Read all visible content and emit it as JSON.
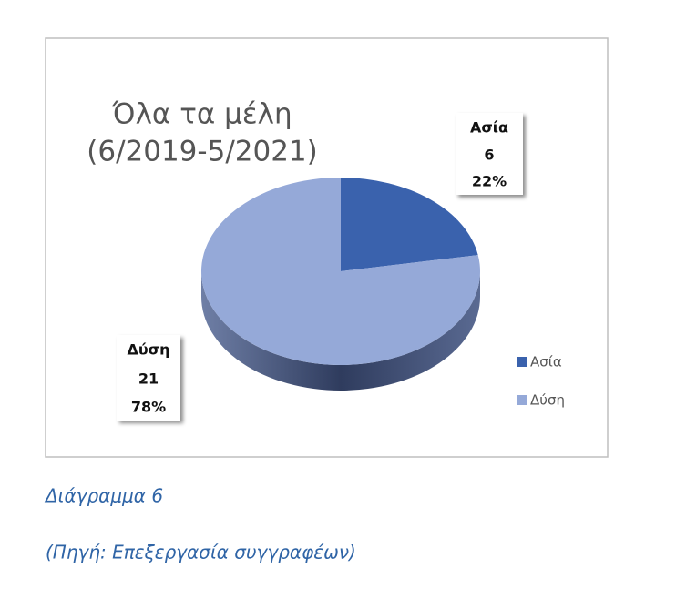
{
  "chart_data": {
    "type": "pie3d",
    "title": [
      "Όλα τα μέλη",
      "(6/2019-5/2021)"
    ],
    "categories": [
      "Ασία",
      "Δύση"
    ],
    "values": [
      6,
      21
    ],
    "percent_labels": [
      "22%",
      "78%"
    ],
    "colors": [
      "#3a62ad",
      "#95a9d8"
    ],
    "side_color": "#4a5a80",
    "legend": "bottom-right"
  },
  "caption": {
    "label": "Διάγραμμα 6",
    "source": "(Πηγή: Επεξεργασία συγγραφέων)"
  }
}
